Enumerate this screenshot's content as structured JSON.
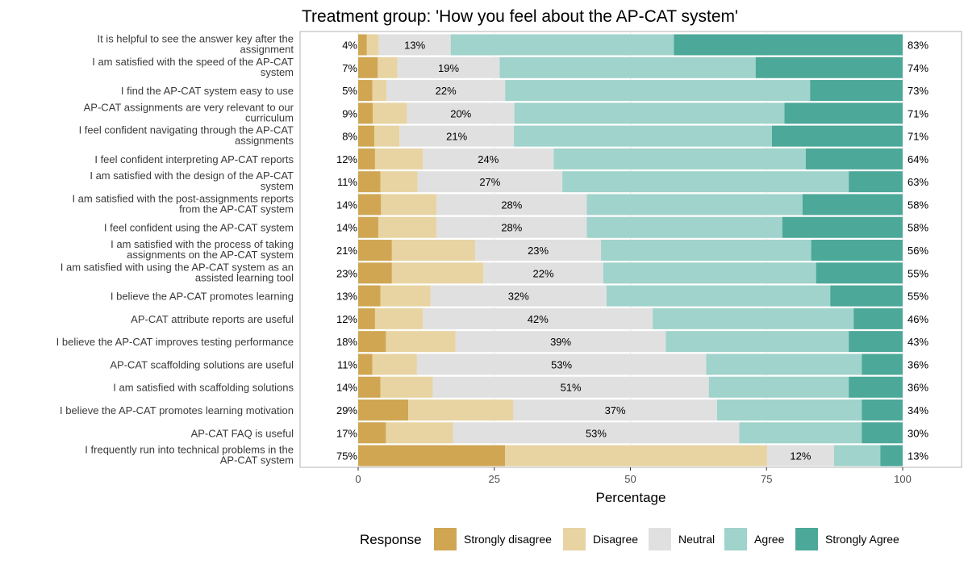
{
  "chart_data": {
    "type": "bar",
    "orientation": "horizontal",
    "stacked": "diverging-percent",
    "title": "Treatment group: 'How you feel about the AP-CAT system'",
    "xlabel": "Percentage",
    "ylabel": "",
    "xlim": [
      0,
      100
    ],
    "x_ticks": [
      "0",
      "25",
      "50",
      "75",
      "100"
    ],
    "grid": true,
    "legend": {
      "title": "Response",
      "position": "bottom"
    },
    "series": [
      {
        "name": "Strongly disagree",
        "color": "#D0A653"
      },
      {
        "name": "Disagree",
        "color": "#E8D4A2"
      },
      {
        "name": "Neutral",
        "color": "#E0E0E0"
      },
      {
        "name": "Agree",
        "color": "#9FD3CB"
      },
      {
        "name": "Strongly Agree",
        "color": "#4CA899"
      }
    ],
    "rows": [
      {
        "label": [
          "It is helpful to see the answer key after the",
          "assignment"
        ],
        "values": [
          1.6,
          2.2,
          13.2,
          41.0,
          42.0
        ],
        "left": "4%",
        "neutral": "13%",
        "right": "83%"
      },
      {
        "label": [
          "I am satisfied with the speed of the AP-CAT",
          "system"
        ],
        "values": [
          3.6,
          3.6,
          18.8,
          47.0,
          27.0
        ],
        "left": "7%",
        "neutral": "19%",
        "right": "74%"
      },
      {
        "label": [
          "I find the AP-CAT system easy to use"
        ],
        "values": [
          2.6,
          2.6,
          21.8,
          56.0,
          17.0
        ],
        "left": "5%",
        "neutral": "22%",
        "right": "73%"
      },
      {
        "label": [
          "AP-CAT assignments are very relevant to our",
          "curriculum"
        ],
        "values": [
          2.7,
          6.3,
          19.7,
          49.6,
          21.7
        ],
        "left": "9%",
        "neutral": "20%",
        "right": "71%"
      },
      {
        "label": [
          "I feel confident navigating through the AP-CAT",
          "assignments"
        ],
        "values": [
          3.0,
          4.6,
          21.0,
          47.4,
          24.0
        ],
        "left": "8%",
        "neutral": "21%",
        "right": "71%"
      },
      {
        "label": [
          "I feel confident interpreting AP-CAT reports"
        ],
        "values": [
          3.1,
          8.8,
          24.0,
          46.3,
          17.8
        ],
        "left": "12%",
        "neutral": "24%",
        "right": "64%"
      },
      {
        "label": [
          "I am satisfied with the design of the AP-CAT",
          "system"
        ],
        "values": [
          4.1,
          6.8,
          26.6,
          52.6,
          9.9
        ],
        "left": "11%",
        "neutral": "27%",
        "right": "63%"
      },
      {
        "label": [
          "I am satisfied with the post-assignments reports",
          "from the AP-CAT system"
        ],
        "values": [
          4.2,
          10.2,
          27.6,
          39.6,
          18.4
        ],
        "left": "14%",
        "neutral": "28%",
        "right": "58%"
      },
      {
        "label": [
          "I feel confident using the AP-CAT system"
        ],
        "values": [
          3.7,
          10.7,
          27.6,
          35.9,
          22.1
        ],
        "left": "14%",
        "neutral": "28%",
        "right": "58%"
      },
      {
        "label": [
          "I am satisfied with the process of taking",
          "assignments on the AP-CAT system"
        ],
        "values": [
          6.2,
          15.3,
          23.1,
          38.6,
          16.8
        ],
        "left": "21%",
        "neutral": "23%",
        "right": "56%"
      },
      {
        "label": [
          "I am satisfied with using the AP-CAT system as an",
          "assisted learning tool"
        ],
        "values": [
          6.2,
          16.8,
          22.0,
          39.1,
          15.9
        ],
        "left": "23%",
        "neutral": "22%",
        "right": "55%"
      },
      {
        "label": [
          "I believe the AP-CAT promotes learning"
        ],
        "values": [
          4.1,
          9.2,
          32.3,
          41.1,
          13.3
        ],
        "left": "13%",
        "neutral": "32%",
        "right": "55%"
      },
      {
        "label": [
          "AP-CAT attribute reports are useful"
        ],
        "values": [
          3.1,
          8.8,
          42.2,
          36.9,
          9.0
        ],
        "left": "12%",
        "neutral": "42%",
        "right": "46%"
      },
      {
        "label": [
          "I believe the AP-CAT improves testing performance"
        ],
        "values": [
          5.1,
          12.8,
          38.6,
          33.6,
          9.9
        ],
        "left": "18%",
        "neutral": "39%",
        "right": "43%"
      },
      {
        "label": [
          "AP-CAT scaffolding solutions are useful"
        ],
        "values": [
          2.6,
          8.2,
          53.1,
          28.6,
          7.5
        ],
        "left": "11%",
        "neutral": "53%",
        "right": "36%"
      },
      {
        "label": [
          "I am satisfied with scaffolding solutions"
        ],
        "values": [
          4.1,
          9.6,
          50.7,
          25.7,
          9.9
        ],
        "left": "14%",
        "neutral": "51%",
        "right": "36%"
      },
      {
        "label": [
          "I believe the AP-CAT promotes learning motivation"
        ],
        "values": [
          9.2,
          19.3,
          37.4,
          26.6,
          7.5
        ],
        "left": "29%",
        "neutral": "37%",
        "right": "34%"
      },
      {
        "label": [
          "AP-CAT FAQ is useful"
        ],
        "values": [
          5.1,
          12.3,
          52.6,
          22.5,
          7.5
        ],
        "left": "17%",
        "neutral": "53%",
        "right": "30%"
      },
      {
        "label": [
          "I frequently run into technical problems in the",
          "AP-CAT system"
        ],
        "values": [
          27.0,
          48.1,
          12.3,
          8.5,
          4.1
        ],
        "left": "75%",
        "neutral": "12%",
        "right": "13%"
      }
    ]
  }
}
